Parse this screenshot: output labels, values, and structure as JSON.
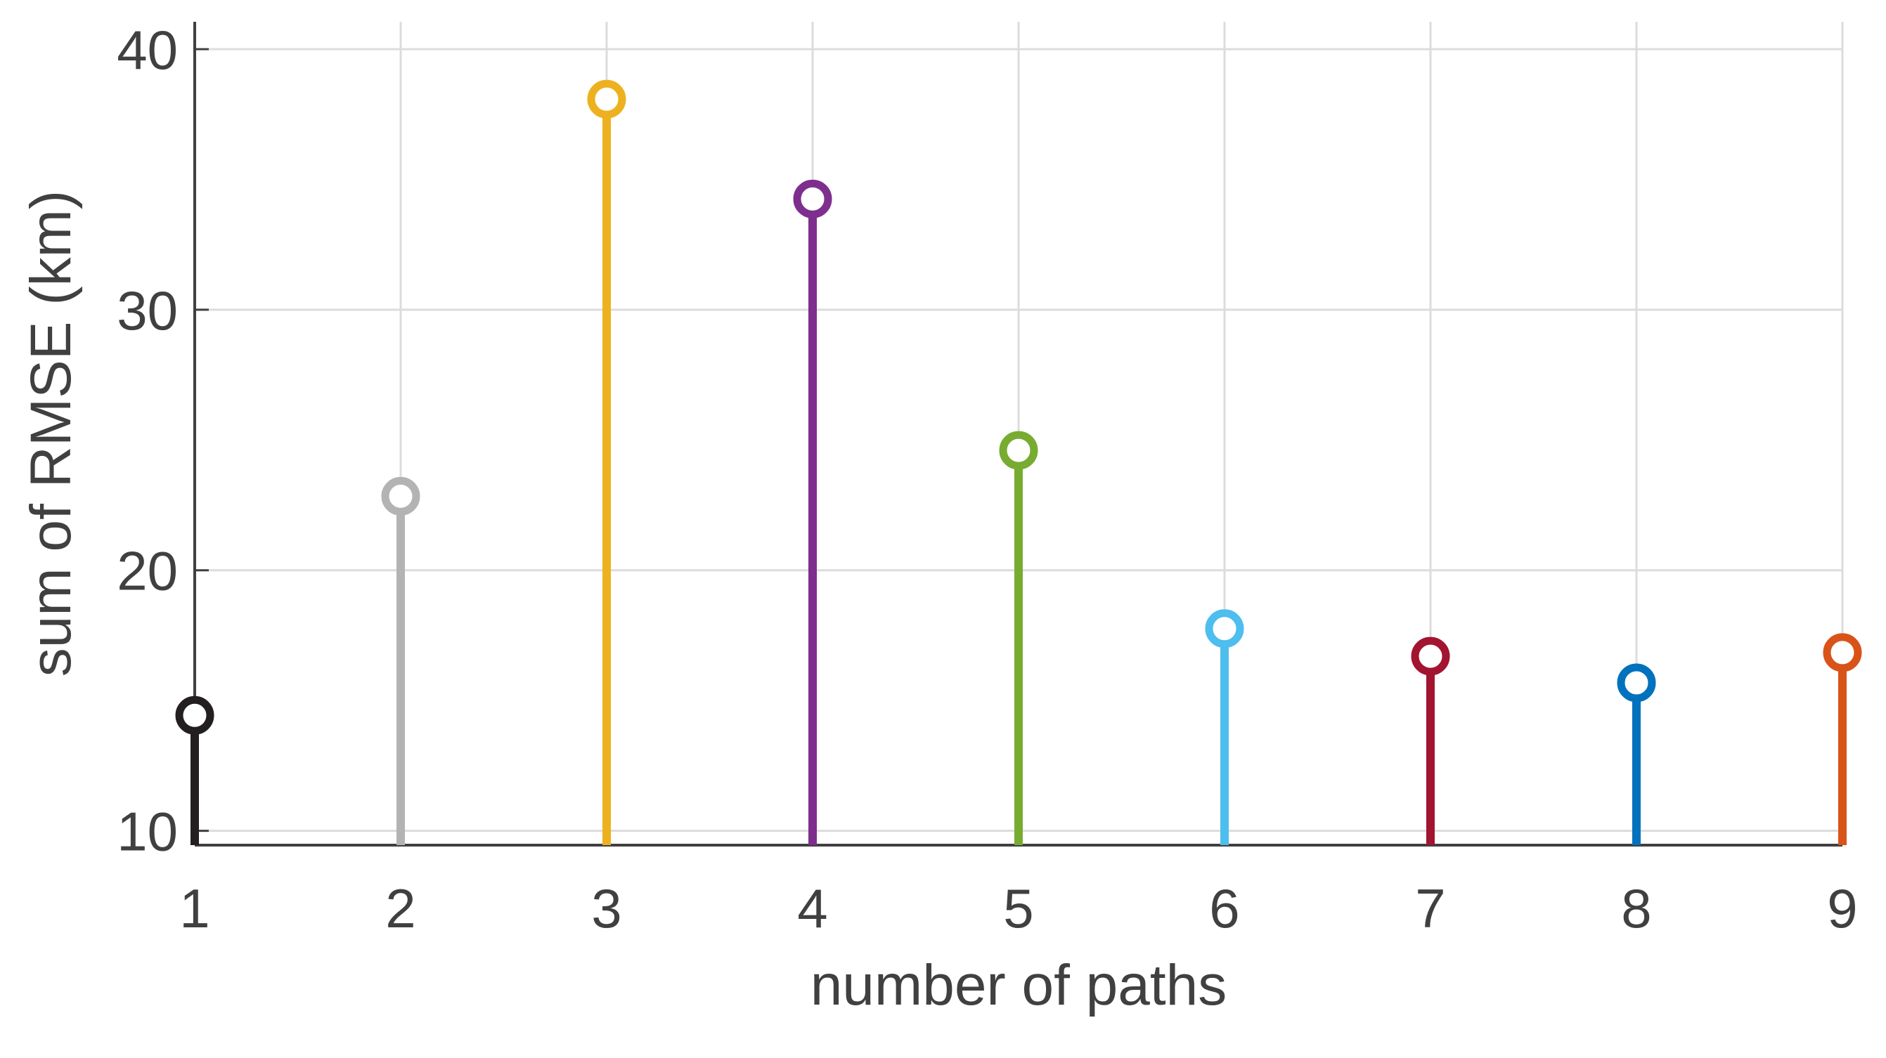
{
  "chart_data": {
    "type": "stem",
    "x": [
      1,
      2,
      3,
      4,
      5,
      6,
      7,
      8,
      9
    ],
    "values": [
      14.43,
      22.84,
      38.08,
      34.25,
      24.6,
      17.76,
      16.7,
      15.68,
      16.84
    ],
    "colors": [
      "#231f20",
      "#b3b3b3",
      "#edb120",
      "#7e2f8e",
      "#77ac30",
      "#4dbeee",
      "#a2142f",
      "#0072bd",
      "#d95319"
    ],
    "xlim": [
      1,
      9
    ],
    "xticks": [
      1,
      2,
      3,
      4,
      5,
      6,
      7,
      8,
      9
    ],
    "ylim": [
      9.45,
      41.05
    ],
    "yticks": [
      10,
      20,
      30,
      40
    ],
    "xlabel": "number of paths",
    "ylabel": "sum of RMSE (km)",
    "grid": true
  }
}
